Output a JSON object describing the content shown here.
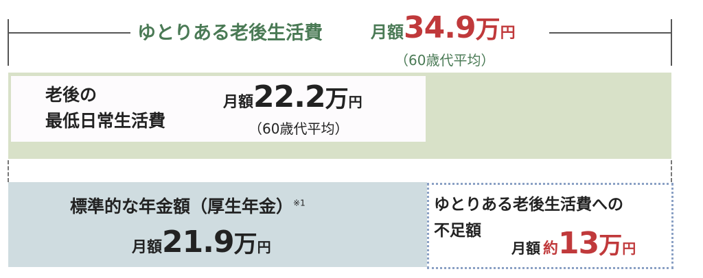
{
  "colors": {
    "accent_green": "#4a7a55",
    "accent_red": "#c0393b",
    "band_green": "#d8e1c8",
    "band_blue": "#cfdce0",
    "dotted_border": "#8aa0c4"
  },
  "comfortable": {
    "label": "ゆとりある老後生活費",
    "prefix": "月額",
    "amount": "34.9",
    "unit_man": "万",
    "unit_yen": "円",
    "note": "（60歳代平均）"
  },
  "minimum": {
    "label_line1": "老後の",
    "label_line2": "最低日常生活費",
    "prefix": "月額",
    "amount": "22.2",
    "unit_man": "万",
    "unit_yen": "円",
    "note": "（60歳代平均）"
  },
  "pension": {
    "label": "標準的な年金額（厚生年金）",
    "footnote": "※1",
    "prefix": "月額",
    "amount": "21.9",
    "unit_man": "万",
    "unit_yen": "円"
  },
  "shortfall": {
    "label_line1": "ゆとりある老後生活費への",
    "label_line2": "不足額",
    "prefix": "月額",
    "approx": "約",
    "amount": "13",
    "unit_man": "万",
    "unit_yen": "円"
  }
}
